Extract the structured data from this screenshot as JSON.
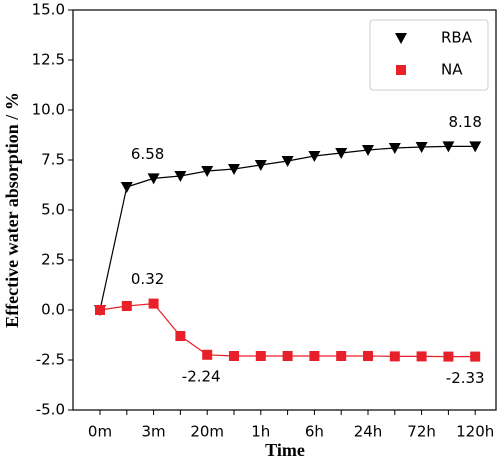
{
  "chart_data": {
    "type": "line",
    "x_label": "Time",
    "y_label": "Effective water absorption / %",
    "categories": [
      "0m",
      null,
      "3m",
      null,
      "20m",
      null,
      "1h",
      null,
      "6h",
      null,
      "24h",
      null,
      "72h",
      null,
      "120h"
    ],
    "series": [
      {
        "name": "RBA",
        "color": "#000000",
        "marker": "triangle-down",
        "values": [
          0,
          6.15,
          6.58,
          6.7,
          6.95,
          7.05,
          7.25,
          7.45,
          7.7,
          7.85,
          8.0,
          8.1,
          8.15,
          8.18,
          8.18
        ],
        "value_labels": [
          null,
          null,
          "6.58",
          null,
          null,
          null,
          null,
          null,
          null,
          null,
          null,
          null,
          null,
          null,
          "8.18"
        ]
      },
      {
        "name": "NA",
        "color": "#e8202a",
        "marker": "square",
        "values": [
          0,
          0.2,
          0.32,
          -1.3,
          -2.24,
          -2.3,
          -2.3,
          -2.3,
          -2.3,
          -2.3,
          -2.3,
          -2.32,
          -2.32,
          -2.33,
          -2.33
        ],
        "value_labels": [
          null,
          null,
          "0.32",
          null,
          "-2.24",
          null,
          null,
          null,
          null,
          null,
          null,
          null,
          null,
          null,
          "-2.33"
        ]
      }
    ],
    "ylim": [
      -5,
      15
    ],
    "yticks": [
      {
        "value": -5,
        "label": "-5.0"
      },
      {
        "value": -2.5,
        "label": "-2.5"
      },
      {
        "value": 0,
        "label": "0.0"
      },
      {
        "value": 2.5,
        "label": "2.5"
      },
      {
        "value": 5,
        "label": "5.0"
      },
      {
        "value": 7.5,
        "label": "7.5"
      },
      {
        "value": 10,
        "label": "10.0"
      },
      {
        "value": 12.5,
        "label": "12.5"
      },
      {
        "value": 15,
        "label": "15.0"
      }
    ],
    "legend": "upper right"
  }
}
